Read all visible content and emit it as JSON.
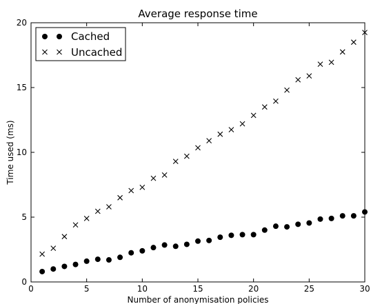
{
  "chart_data": {
    "type": "scatter",
    "title": "Average response time",
    "xlabel": "Number of anonymisation policies",
    "ylabel": "Time used (ms)",
    "xlim": [
      0,
      30
    ],
    "ylim": [
      0,
      20
    ],
    "xticks": [
      0,
      5,
      10,
      15,
      20,
      25,
      30
    ],
    "yticks": [
      0,
      5,
      10,
      15,
      20
    ],
    "grid": false,
    "legend_position": "top-left",
    "x": [
      1,
      2,
      3,
      4,
      5,
      6,
      7,
      8,
      9,
      10,
      11,
      12,
      13,
      14,
      15,
      16,
      17,
      18,
      19,
      20,
      21,
      22,
      23,
      24,
      25,
      26,
      27,
      28,
      29,
      30
    ],
    "series": [
      {
        "name": "Cached",
        "marker": "filled-circle",
        "color": "#000000",
        "values": [
          0.8,
          1.0,
          1.2,
          1.35,
          1.6,
          1.75,
          1.7,
          1.9,
          2.25,
          2.4,
          2.65,
          2.85,
          2.75,
          2.9,
          3.15,
          3.2,
          3.45,
          3.6,
          3.65,
          3.65,
          4.0,
          4.3,
          4.25,
          4.45,
          4.55,
          4.85,
          4.9,
          5.1,
          5.1,
          5.4
        ]
      },
      {
        "name": "Uncached",
        "marker": "x",
        "color": "#000000",
        "values": [
          2.15,
          2.6,
          3.5,
          4.4,
          4.9,
          5.45,
          5.8,
          6.5,
          7.05,
          7.3,
          8.0,
          8.25,
          9.3,
          9.7,
          10.35,
          10.9,
          11.4,
          11.75,
          12.2,
          12.85,
          13.5,
          13.95,
          14.8,
          15.6,
          15.9,
          16.8,
          16.95,
          17.75,
          18.5,
          19.25
        ]
      }
    ]
  }
}
